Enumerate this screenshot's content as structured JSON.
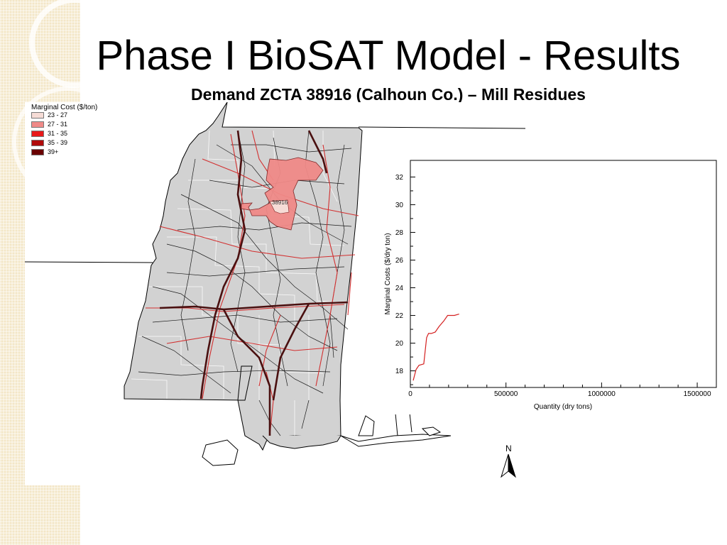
{
  "slide": {
    "title": "Phase I BioSAT Model - Results",
    "subtitle": "Demand ZCTA 38916 (Calhoun Co.) – Mill Residues"
  },
  "legend": {
    "title": "Marginal Cost ($/ton)",
    "items": [
      {
        "label": "23 - 27",
        "color": "#f6dcd6"
      },
      {
        "label": "27 - 31",
        "color": "#f08a88"
      },
      {
        "label": "31 - 35",
        "color": "#e8191a"
      },
      {
        "label": "35 - 39",
        "color": "#b00a0a"
      },
      {
        "label": "39+",
        "color": "#6a0000"
      }
    ]
  },
  "map": {
    "north_label": "N",
    "highlight_label": "38916",
    "colors": {
      "land": "#d2d2d2",
      "roads": "#1a1a1a",
      "highways": "#d23030",
      "highlight": "#f08a88",
      "demand_zcta": "#f6dcd6"
    }
  },
  "chart_data": {
    "type": "line",
    "xlabel": "Quantity (dry tons)",
    "ylabel": "Marginal Costs ($/dry ton)",
    "xlim": [
      0,
      1600000
    ],
    "ylim": [
      16.8,
      33.2
    ],
    "xticks": [
      0,
      500000,
      1000000,
      1500000
    ],
    "xtick_labels": [
      "0",
      "500000",
      "1000000",
      "1500000"
    ],
    "yticks": [
      18,
      20,
      22,
      24,
      26,
      28,
      30,
      32
    ],
    "ytick_labels": [
      "18",
      "20",
      "22",
      "24",
      "26",
      "28",
      "30",
      "32"
    ],
    "series": [
      {
        "color": "#d42020",
        "x": [
          15000,
          30000,
          45000,
          70000,
          85000,
          95000,
          110000,
          130000,
          150000,
          175000,
          195000,
          210000,
          230000,
          255000
        ],
        "y": [
          17.3,
          18.1,
          18.4,
          18.5,
          20.4,
          20.7,
          20.7,
          20.8,
          21.2,
          21.6,
          22.0,
          22.0,
          22.0,
          22.1
        ]
      }
    ]
  }
}
